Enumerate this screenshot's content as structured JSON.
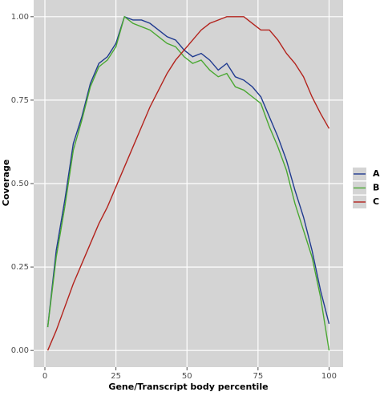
{
  "chart_data": {
    "type": "line",
    "x_label": "Gene/Transcript body percentile",
    "y_label": "Coverage",
    "x": [
      1,
      4,
      7,
      10,
      13,
      16,
      19,
      22,
      25,
      28,
      31,
      34,
      37,
      40,
      43,
      46,
      49,
      52,
      55,
      58,
      61,
      64,
      67,
      70,
      73,
      76,
      79,
      82,
      85,
      88,
      91,
      94,
      97,
      100
    ],
    "series": [
      {
        "name": "A",
        "color": "#1f3a8f",
        "values": [
          0.07,
          0.3,
          0.45,
          0.62,
          0.7,
          0.8,
          0.86,
          0.88,
          0.92,
          1.0,
          0.99,
          0.99,
          0.98,
          0.96,
          0.94,
          0.93,
          0.9,
          0.88,
          0.89,
          0.87,
          0.84,
          0.86,
          0.82,
          0.81,
          0.79,
          0.76,
          0.7,
          0.64,
          0.57,
          0.48,
          0.4,
          0.3,
          0.18,
          0.08
        ]
      },
      {
        "name": "B",
        "color": "#4aa832",
        "values": [
          0.07,
          0.28,
          0.43,
          0.6,
          0.69,
          0.79,
          0.85,
          0.87,
          0.91,
          1.0,
          0.98,
          0.97,
          0.96,
          0.94,
          0.92,
          0.91,
          0.88,
          0.86,
          0.87,
          0.84,
          0.82,
          0.83,
          0.79,
          0.78,
          0.76,
          0.74,
          0.67,
          0.61,
          0.54,
          0.44,
          0.36,
          0.28,
          0.16,
          0.0
        ]
      },
      {
        "name": "C",
        "color": "#b3231d",
        "values": [
          0.0,
          0.06,
          0.13,
          0.2,
          0.26,
          0.32,
          0.38,
          0.43,
          0.49,
          0.55,
          0.61,
          0.67,
          0.73,
          0.78,
          0.83,
          0.87,
          0.9,
          0.93,
          0.96,
          0.98,
          0.99,
          1.0,
          1.0,
          1.0,
          0.98,
          0.96,
          0.96,
          0.93,
          0.89,
          0.86,
          0.82,
          0.76,
          0.71,
          0.665
        ]
      }
    ],
    "xlim": [
      -3.95,
      104.95
    ],
    "ylim": [
      -0.05,
      1.05
    ],
    "xticks": [
      0,
      25,
      50,
      75,
      100
    ],
    "yticks": [
      {
        "value": 0,
        "label": "0.00"
      },
      0.25,
      {
        "value": 0.5,
        "label": "0.50"
      },
      0.75,
      {
        "value": 1,
        "label": "1.00"
      }
    ],
    "grid": true,
    "legend": "right"
  }
}
